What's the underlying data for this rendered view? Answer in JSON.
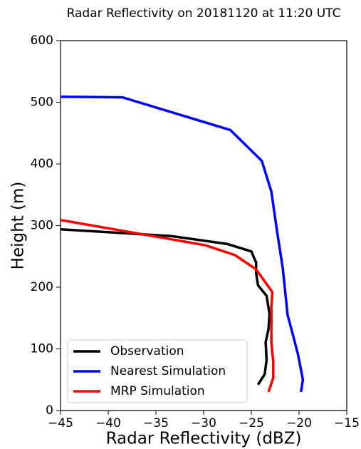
{
  "chart_data": {
    "type": "line",
    "title": "Radar Reflectivity on 20181120 at 11:20 UTC",
    "x_label": "Radar Reflectivity (dBZ)",
    "y_label": "Height (m)",
    "xlim": [
      -45,
      -15
    ],
    "xticks": [
      {
        "value": -45,
        "label": "−45"
      },
      {
        "value": -40,
        "label": "−40"
      },
      {
        "value": -35,
        "label": "−35"
      },
      {
        "value": -30,
        "label": "−30"
      },
      {
        "value": -25,
        "label": "−25"
      },
      {
        "value": -20,
        "label": "−20"
      },
      {
        "value": -15,
        "label": "−15"
      }
    ],
    "ylim": [
      0,
      600
    ],
    "yticks": [
      0,
      100,
      200,
      300,
      400,
      500,
      600
    ],
    "legend": "lower left",
    "series": [
      {
        "name": "Observation",
        "color": "#000000",
        "x": [
          -24.3,
          -23.6,
          -23.4,
          -23.5,
          -23.2,
          -23.1,
          -23.4,
          -24.3,
          -24.5,
          -24.5,
          -25.0,
          -27.5,
          -33.4,
          -45
        ],
        "values": [
          42,
          59,
          82,
          111,
          132,
          157,
          186,
          203,
          223,
          240,
          258,
          270,
          283,
          294
        ]
      },
      {
        "name": "Nearest Simulation",
        "color": "#0000ff",
        "x": [
          -19.8,
          -19.6,
          -20.1,
          -20.6,
          -21.2,
          -21.7,
          -22.3,
          -22.9,
          -23.9,
          -27.2,
          -38.5,
          -45
        ],
        "values": [
          30,
          50,
          90,
          120,
          155,
          230,
          290,
          355,
          405,
          455,
          508,
          509
        ]
      },
      {
        "name": "MRP Simulation",
        "color": "#ff0000",
        "x": [
          -23.2,
          -22.7,
          -22.7,
          -22.9,
          -22.9,
          -22.8,
          -24.5,
          -26.7,
          -29.8,
          -34.2,
          -45
        ],
        "values": [
          30,
          53,
          79,
          111,
          169,
          192,
          229,
          252,
          268,
          280,
          309
        ]
      }
    ]
  }
}
